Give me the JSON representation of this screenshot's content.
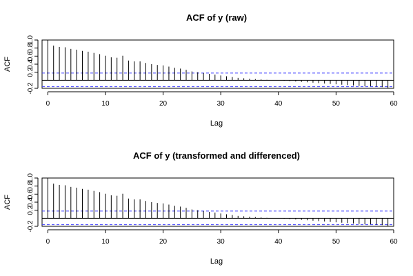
{
  "chart_data": [
    {
      "type": "bar",
      "subtype": "acf",
      "title": "ACF of y (raw)",
      "xlabel": "Lag",
      "ylabel": "ACF",
      "xlim": [
        -1,
        60
      ],
      "ylim": [
        -0.2,
        1.0
      ],
      "xticks": [
        0,
        10,
        20,
        30,
        40,
        50,
        60
      ],
      "yticks": [
        -0.2,
        0.2,
        0.4,
        0.6,
        0.8,
        1.0
      ],
      "ytick_labels": [
        "-0.2",
        "0.2",
        "0.4",
        "0.6",
        "0.8",
        "1.0"
      ],
      "confidence_band": [
        0.18,
        -0.16
      ],
      "band_color": "#4040ff",
      "bar_color": "#000000",
      "lags": [
        0,
        1,
        2,
        3,
        4,
        5,
        6,
        7,
        8,
        9,
        10,
        11,
        12,
        13,
        14,
        15,
        16,
        17,
        18,
        19,
        20,
        21,
        22,
        23,
        24,
        25,
        26,
        27,
        28,
        29,
        30,
        31,
        32,
        33,
        34,
        35,
        36,
        37,
        38,
        39,
        40,
        41,
        42,
        43,
        44,
        45,
        46,
        47,
        48,
        49,
        50,
        51,
        52,
        53,
        54,
        55,
        56,
        57,
        58,
        59
      ],
      "values": [
        1.0,
        0.86,
        0.83,
        0.82,
        0.78,
        0.76,
        0.73,
        0.71,
        0.68,
        0.65,
        0.61,
        0.57,
        0.56,
        0.61,
        0.49,
        0.47,
        0.47,
        0.43,
        0.4,
        0.38,
        0.37,
        0.34,
        0.31,
        0.29,
        0.26,
        0.22,
        0.2,
        0.18,
        0.16,
        0.14,
        0.12,
        0.1,
        0.08,
        0.06,
        0.05,
        0.04,
        0.03,
        0.02,
        0.01,
        0.0,
        0.0,
        -0.01,
        -0.02,
        -0.03,
        -0.04,
        -0.05,
        -0.06,
        -0.07,
        -0.08,
        -0.09,
        -0.1,
        -0.11,
        -0.12,
        -0.13,
        -0.14,
        -0.15,
        -0.15,
        -0.16,
        -0.17,
        -0.19
      ]
    },
    {
      "type": "bar",
      "subtype": "acf",
      "title": "ACF of y (transformed and differenced)",
      "xlabel": "Lag",
      "ylabel": "ACF",
      "xlim": [
        -1,
        60
      ],
      "ylim": [
        -0.2,
        1.0
      ],
      "xticks": [
        0,
        10,
        20,
        30,
        40,
        50,
        60
      ],
      "yticks": [
        -0.2,
        0.2,
        0.4,
        0.6,
        0.8,
        1.0
      ],
      "ytick_labels": [
        "-0.2",
        "0.2",
        "0.4",
        "0.6",
        "0.8",
        "1.0"
      ],
      "confidence_band": [
        0.18,
        -0.16
      ],
      "band_color": "#4040ff",
      "bar_color": "#000000",
      "lags": [
        0,
        1,
        2,
        3,
        4,
        5,
        6,
        7,
        8,
        9,
        10,
        11,
        12,
        13,
        14,
        15,
        16,
        17,
        18,
        19,
        20,
        21,
        22,
        23,
        24,
        25,
        26,
        27,
        28,
        29,
        30,
        31,
        32,
        33,
        34,
        35,
        36,
        37,
        38,
        39,
        40,
        41,
        42,
        43,
        44,
        45,
        46,
        47,
        48,
        49,
        50,
        51,
        52,
        53,
        54,
        55,
        56,
        57,
        58,
        59
      ],
      "values": [
        1.0,
        0.86,
        0.83,
        0.82,
        0.78,
        0.76,
        0.73,
        0.71,
        0.68,
        0.65,
        0.61,
        0.57,
        0.56,
        0.61,
        0.49,
        0.47,
        0.47,
        0.43,
        0.4,
        0.38,
        0.37,
        0.34,
        0.31,
        0.29,
        0.26,
        0.22,
        0.2,
        0.18,
        0.16,
        0.14,
        0.12,
        0.1,
        0.08,
        0.06,
        0.05,
        0.04,
        0.03,
        0.02,
        0.01,
        0.0,
        0.0,
        -0.01,
        -0.02,
        -0.03,
        -0.04,
        -0.05,
        -0.06,
        -0.07,
        -0.08,
        -0.09,
        -0.1,
        -0.11,
        -0.12,
        -0.13,
        -0.14,
        -0.15,
        -0.15,
        -0.16,
        -0.17,
        -0.19
      ]
    }
  ]
}
